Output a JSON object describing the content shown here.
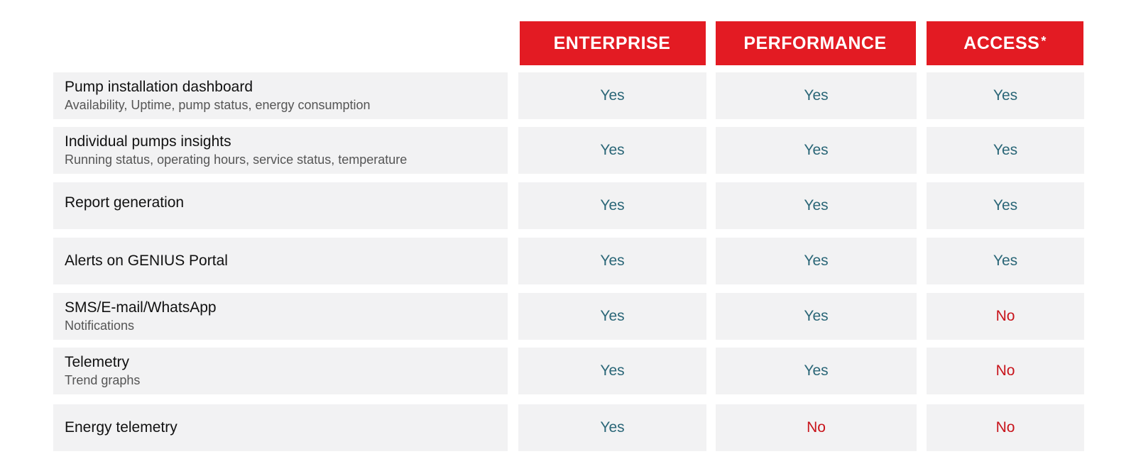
{
  "header": {
    "columns": [
      {
        "label": "ENTERPRISE",
        "mark": ""
      },
      {
        "label": "PERFORMANCE",
        "mark": ""
      },
      {
        "label": "ACCESS",
        "mark": "*"
      }
    ]
  },
  "rows": [
    {
      "title": "Pump installation dashboard",
      "sub": "Availability, Uptime, pump status, energy consumption",
      "values": [
        "Yes",
        "Yes",
        "Yes"
      ]
    },
    {
      "title": "Individual pumps insights",
      "sub": "Running status, operating hours, service status, temperature",
      "values": [
        "Yes",
        "Yes",
        "Yes"
      ]
    },
    {
      "title": "Report generation",
      "sub": "",
      "values": [
        "Yes",
        "Yes",
        "Yes"
      ]
    },
    {
      "title": "Alerts on GENIUS Portal",
      "sub": "",
      "values": [
        "Yes",
        "Yes",
        "Yes"
      ]
    },
    {
      "title": "SMS/E-mail/WhatsApp",
      "sub": "Notifications",
      "values": [
        "Yes",
        "Yes",
        "No"
      ]
    },
    {
      "title": "Telemetry",
      "sub": "Trend graphs",
      "values": [
        "Yes",
        "Yes",
        "No"
      ]
    },
    {
      "title": "Energy telemetry",
      "sub": "",
      "values": [
        "Yes",
        "No",
        "No"
      ]
    }
  ],
  "colors": {
    "header_bg": "#e31b23",
    "yes": "#2a6677",
    "no": "#c8141b",
    "cell_bg": "#f2f2f3"
  }
}
